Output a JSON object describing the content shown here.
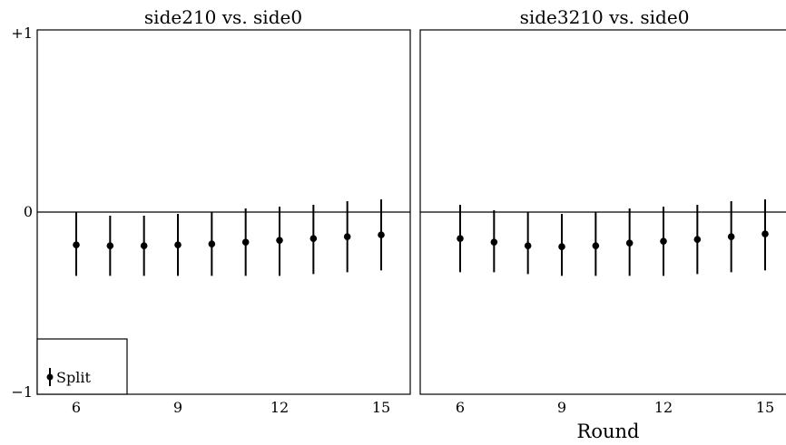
{
  "chart_data": [
    {
      "type": "scatter",
      "title": "side210 vs. side0",
      "xlabel": "",
      "ylabel": "",
      "xlim": [
        5,
        16
      ],
      "ylim": [
        -1,
        1
      ],
      "xticks": [
        "6",
        "9",
        "12",
        "15"
      ],
      "yticks": [
        "+1",
        "0",
        "−1"
      ],
      "legend": {
        "label": "Split",
        "placement": "bottom-left"
      },
      "series": [
        {
          "name": "Split",
          "x": [
            6,
            7,
            8,
            9,
            10,
            11,
            12,
            13,
            14,
            15
          ],
          "y": [
            -0.18,
            -0.185,
            -0.185,
            -0.18,
            -0.175,
            -0.165,
            -0.155,
            -0.145,
            -0.135,
            -0.125
          ],
          "yerr_low": [
            -0.35,
            -0.35,
            -0.35,
            -0.35,
            -0.35,
            -0.35,
            -0.35,
            -0.34,
            -0.33,
            -0.32
          ],
          "yerr_high": [
            0,
            -0.02,
            -0.02,
            -0.01,
            0,
            0.02,
            0.03,
            0.04,
            0.06,
            0.07
          ]
        }
      ]
    },
    {
      "type": "scatter",
      "title": "side3210 vs. side0",
      "xlabel": "Round",
      "ylabel": "",
      "xlim": [
        5,
        16
      ],
      "ylim": [
        -1,
        1
      ],
      "xticks": [
        "6",
        "9",
        "12",
        "15"
      ],
      "series": [
        {
          "x": [
            6,
            7,
            8,
            9,
            10,
            11,
            12,
            13,
            14,
            15
          ],
          "y": [
            -0.145,
            -0.165,
            -0.185,
            -0.19,
            -0.185,
            -0.17,
            -0.16,
            -0.15,
            -0.135,
            -0.12
          ],
          "yerr_low": [
            -0.33,
            -0.33,
            -0.34,
            -0.35,
            -0.35,
            -0.35,
            -0.35,
            -0.34,
            -0.33,
            -0.32
          ],
          "yerr_high": [
            0.04,
            0.01,
            0,
            -0.01,
            0,
            0.02,
            0.03,
            0.04,
            0.06,
            0.07
          ]
        }
      ]
    }
  ]
}
